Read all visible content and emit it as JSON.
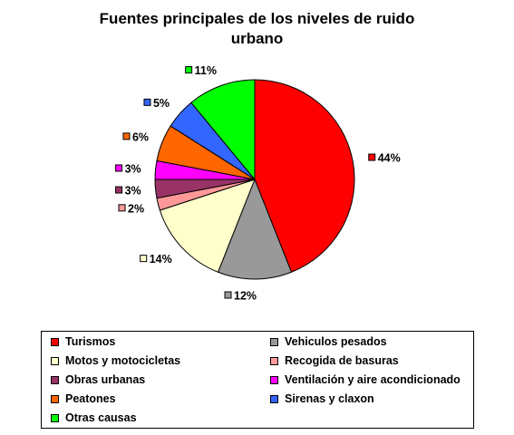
{
  "chart_data": {
    "type": "pie",
    "title": [
      "Fuentes principales de los niveles de ruido",
      "urbano"
    ],
    "slices": [
      {
        "label": "Turismos",
        "value": 44,
        "display": "44%",
        "color": "#ff0000"
      },
      {
        "label": "Vehiculos pesados",
        "value": 12,
        "display": "12%",
        "color": "#999999"
      },
      {
        "label": "Motos y motocicletas",
        "value": 14,
        "display": "14%",
        "color": "#ffffcc"
      },
      {
        "label": "Recogida de basuras",
        "value": 2,
        "display": "2%",
        "color": "#ff9999"
      },
      {
        "label": "Obras urbanas",
        "value": 3,
        "display": "3%",
        "color": "#993366"
      },
      {
        "label": "Ventilación y aire acondicionado",
        "value": 3,
        "display": "3%",
        "color": "#ff00ff"
      },
      {
        "label": "Peatones",
        "value": 6,
        "display": "6%",
        "color": "#ff6600"
      },
      {
        "label": "Sirenas y claxon",
        "value": 5,
        "display": "5%",
        "color": "#3366ff"
      },
      {
        "label": "Otras causas",
        "value": 11,
        "display": "11%",
        "color": "#00ff00"
      }
    ],
    "legend_position": "bottom"
  }
}
